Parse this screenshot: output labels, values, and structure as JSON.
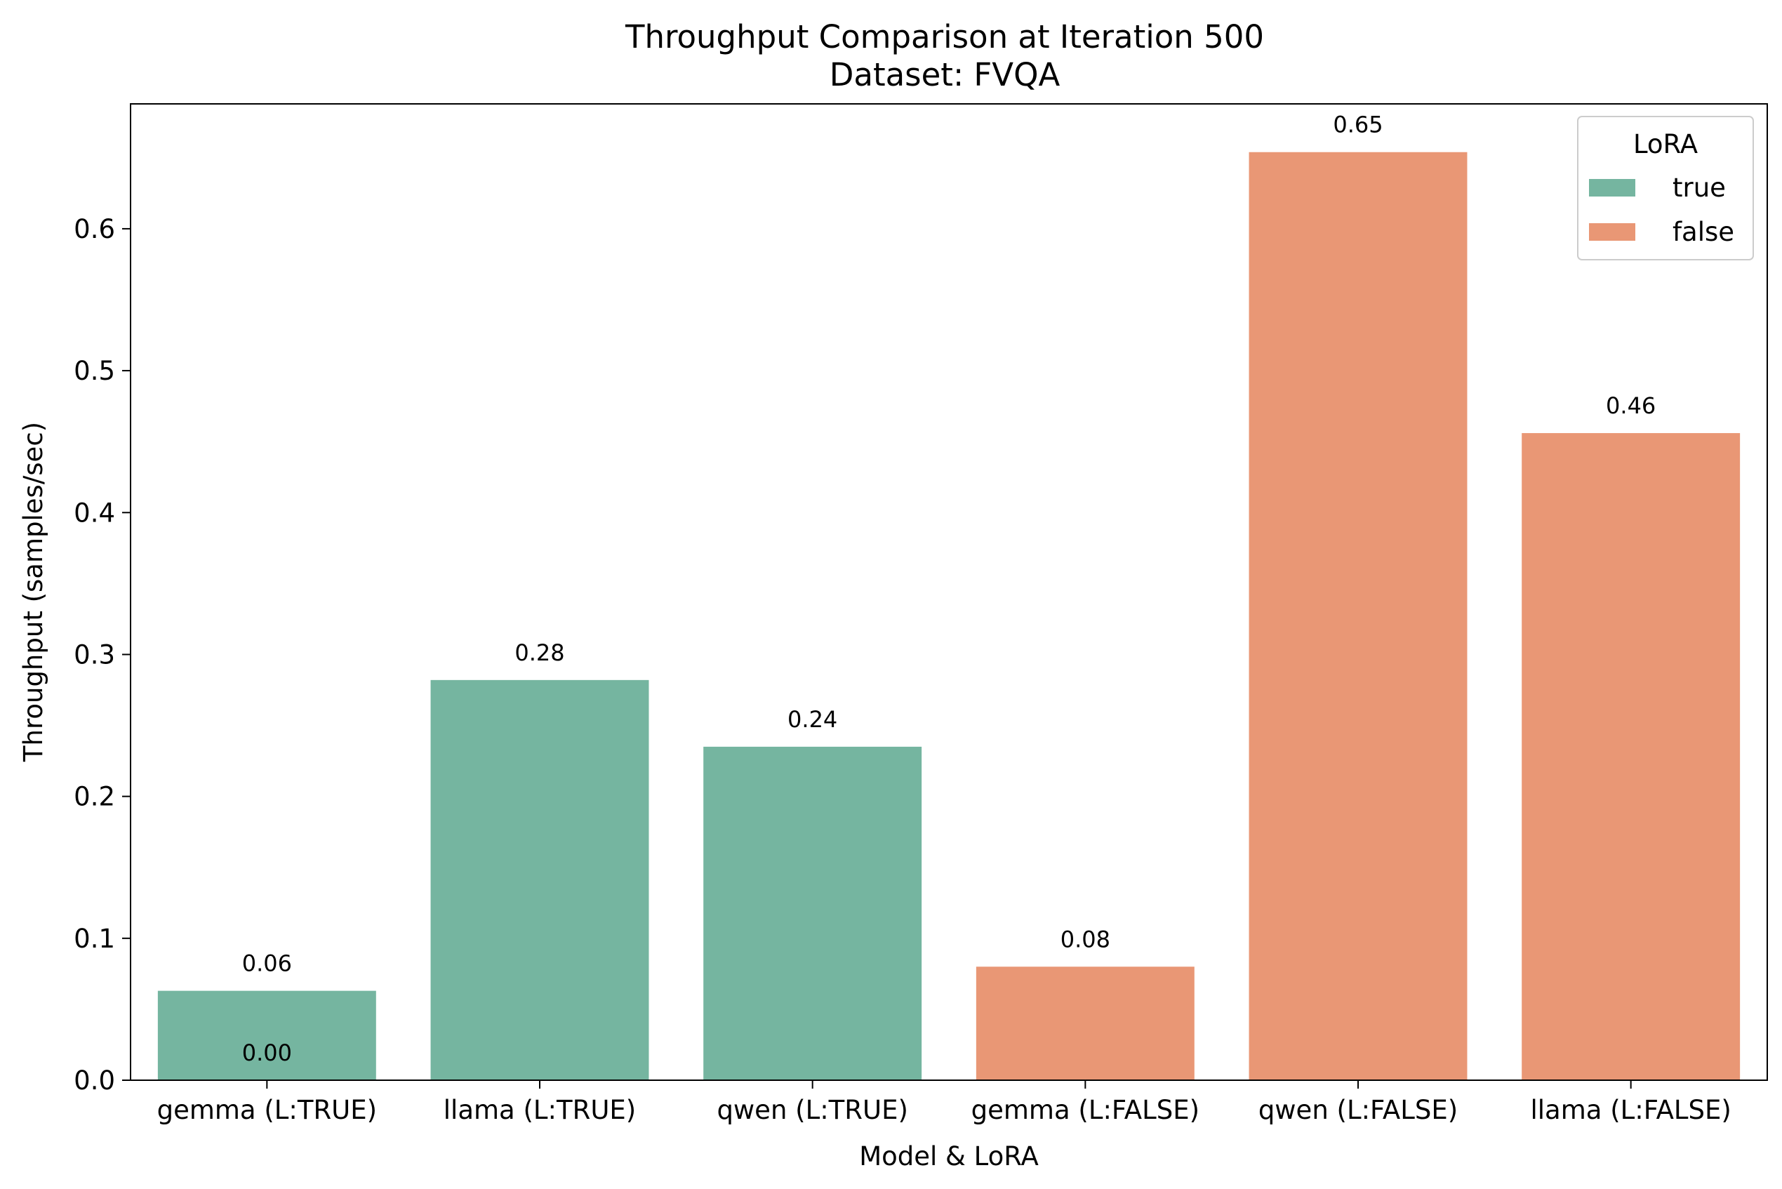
{
  "chart_data": {
    "type": "bar",
    "title": "Throughput Comparison at Iteration 500",
    "subtitle": "Dataset: FVQA",
    "xlabel": "Model & LoRA",
    "ylabel": "Throughput (samples/sec)",
    "categories": [
      "gemma (L:TRUE)",
      "llama (L:TRUE)",
      "qwen (L:TRUE)",
      "gemma (L:FALSE)",
      "qwen (L:FALSE)",
      "llama (L:FALSE)"
    ],
    "values": [
      0.063,
      0.282,
      0.235,
      0.08,
      0.654,
      0.456
    ],
    "bar_labels": [
      "0.06",
      "0.28",
      "0.24",
      "0.08",
      "0.65",
      "0.46"
    ],
    "bar_groups": [
      "true",
      "true",
      "true",
      "false",
      "false",
      "false"
    ],
    "extra_labels": [
      {
        "category": "gemma (L:TRUE)",
        "value": 0,
        "text": "0.00"
      }
    ],
    "ylim": [
      0,
      0.688
    ],
    "yticks": [
      0.0,
      0.1,
      0.2,
      0.3,
      0.4,
      0.5,
      0.6
    ],
    "ytick_labels": [
      "0.0",
      "0.1",
      "0.2",
      "0.3",
      "0.4",
      "0.5",
      "0.6"
    ],
    "grid": false,
    "legend": {
      "title": "LoRA",
      "placement": "top-right",
      "entries": [
        {
          "name": "true",
          "color": "#75b5a0"
        },
        {
          "name": "false",
          "color": "#e99775"
        }
      ]
    }
  }
}
